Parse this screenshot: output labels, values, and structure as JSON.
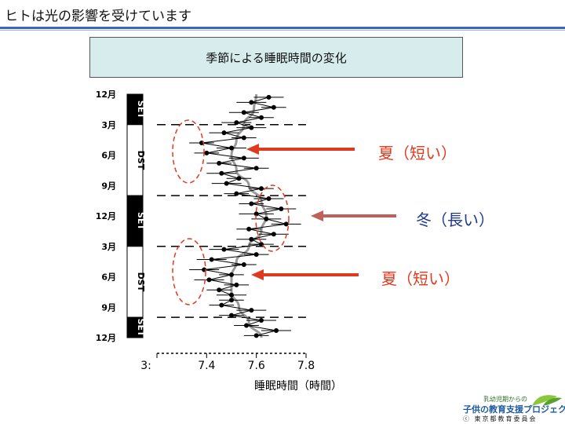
{
  "slide": {
    "title": "ヒトは光の影響を受けています",
    "chart_title": "季節による睡眠時間の変化"
  },
  "annotations": {
    "summer1": "夏（短い）",
    "winter": "冬（長い）",
    "summer2": "夏（短い）"
  },
  "colors": {
    "title_rule": "#3b63c9",
    "summer": "#e03a1e",
    "winter": "#1f3a8a",
    "winter_arrow": "#c0605a",
    "smooth": "#9a9a9a"
  },
  "logo": {
    "line1": "乳幼児期からの",
    "line2": "子供の教育支援プロジェクト",
    "line3": "ⓒ 東京都教育委員会"
  },
  "chart_data": {
    "type": "line",
    "orientation": "horizontal-time-vertical",
    "xlabel": "睡眠時間（時間）",
    "x_ticks": [
      "3:",
      "7.4",
      "7.6",
      "7.8"
    ],
    "xlim": [
      7.2,
      7.8
    ],
    "y_ticks": [
      "12月",
      "3月",
      "6月",
      "9月",
      "12月",
      "3月",
      "6月",
      "9月",
      "12月"
    ],
    "y_tick_months": [
      0,
      3,
      6,
      9,
      12,
      15,
      18,
      21,
      24
    ],
    "period_bar": [
      {
        "label": "SET",
        "from": 0,
        "to": 3,
        "fill": "black"
      },
      {
        "label": "DST",
        "from": 3,
        "to": 10,
        "fill": "white"
      },
      {
        "label": "SET",
        "from": 10,
        "to": 15,
        "fill": "black"
      },
      {
        "label": "DST",
        "from": 15,
        "to": 22,
        "fill": "white"
      },
      {
        "label": "SET",
        "from": 22,
        "to": 24,
        "fill": "black"
      }
    ],
    "dashed_lines_month": [
      3,
      10,
      15,
      22
    ],
    "series": [
      {
        "month": [
          0.3,
          0.8,
          1.3,
          1.8,
          2.3,
          2.8,
          3.3,
          3.8,
          4.3,
          4.8,
          5.3,
          5.8,
          6.3,
          6.8,
          7.3,
          7.8,
          8.3,
          8.8,
          9.3,
          9.8,
          10.3,
          10.8,
          11.3,
          11.8,
          12.3,
          12.8,
          13.3,
          13.8,
          14.3,
          14.8,
          15.3,
          15.8,
          16.3,
          16.8,
          17.3,
          17.8,
          18.3,
          18.8,
          19.3,
          19.8,
          20.3,
          20.8,
          21.3,
          21.8,
          22.3,
          22.8,
          23.3,
          23.8
        ],
        "values": [
          7.65,
          7.58,
          7.67,
          7.55,
          7.62,
          7.52,
          7.58,
          7.47,
          7.55,
          7.38,
          7.5,
          7.4,
          7.55,
          7.45,
          7.6,
          7.46,
          7.53,
          7.48,
          7.62,
          7.52,
          7.65,
          7.58,
          7.7,
          7.6,
          7.64,
          7.72,
          7.57,
          7.67,
          7.58,
          7.62,
          7.47,
          7.6,
          7.42,
          7.55,
          7.39,
          7.5,
          7.41,
          7.52,
          7.45,
          7.5,
          7.5,
          7.46,
          7.58,
          7.5,
          7.62,
          7.56,
          7.68,
          7.6
        ],
        "xerr": [
          0.06,
          0.06,
          0.05,
          0.06,
          0.05,
          0.06,
          0.06,
          0.06,
          0.05,
          0.05,
          0.06,
          0.05,
          0.06,
          0.05,
          0.05,
          0.06,
          0.05,
          0.06,
          0.05,
          0.05,
          0.06,
          0.05,
          0.06,
          0.07,
          0.06,
          0.06,
          0.05,
          0.06,
          0.06,
          0.05,
          0.06,
          0.05,
          0.06,
          0.05,
          0.06,
          0.05,
          0.06,
          0.05,
          0.05,
          0.06,
          0.05,
          0.05,
          0.06,
          0.05,
          0.06,
          0.05,
          0.06,
          0.05
        ]
      },
      {
        "month": [
          0,
          1.5,
          3,
          4.5,
          6,
          7.5,
          9,
          10.5,
          12,
          13.5,
          15,
          16.5,
          18,
          19.5,
          21,
          22.5,
          24
        ],
        "values": [
          7.6,
          7.59,
          7.55,
          7.52,
          7.5,
          7.52,
          7.57,
          7.62,
          7.64,
          7.62,
          7.57,
          7.52,
          7.5,
          7.5,
          7.53,
          7.57,
          7.62
        ]
      }
    ]
  }
}
